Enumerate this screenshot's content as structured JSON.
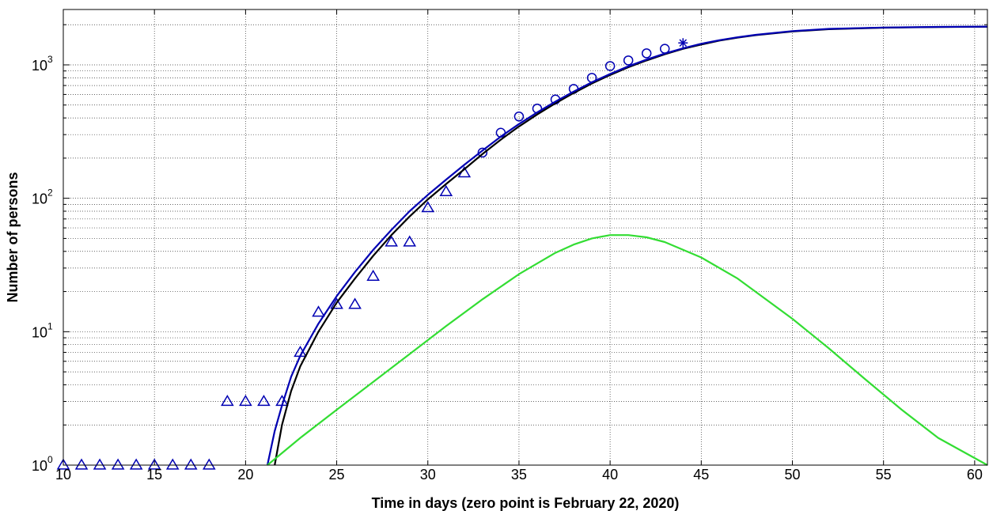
{
  "chart_data": {
    "type": "line",
    "title": "",
    "xlabel": "Time in days (zero point is February 22, 2020)",
    "ylabel": "Number of persons",
    "xlim": [
      10,
      60.7
    ],
    "ylim": [
      1,
      2600
    ],
    "yscale": "log",
    "grid": true,
    "x_ticks": [
      10,
      15,
      20,
      25,
      30,
      35,
      40,
      45,
      50,
      55,
      60
    ],
    "y_ticks": [
      {
        "value": 1,
        "base": "10",
        "exp": "0"
      },
      {
        "value": 10,
        "base": "10",
        "exp": "1"
      },
      {
        "value": 100,
        "base": "10",
        "exp": "2"
      },
      {
        "value": 1000,
        "base": "10",
        "exp": "3"
      }
    ],
    "series": [
      {
        "style": "triangle-markers",
        "color": "#0000b3",
        "x": [
          10,
          11,
          12,
          13,
          14,
          15,
          16,
          17,
          18,
          19,
          20,
          21,
          22,
          23,
          24,
          25,
          26,
          27,
          28,
          29,
          30,
          31,
          32
        ],
        "y": [
          1,
          1,
          1,
          1,
          1,
          1,
          1,
          1,
          1,
          3,
          3,
          3,
          3,
          7,
          14,
          16,
          16,
          26,
          47,
          47,
          85,
          112,
          155
        ]
      },
      {
        "style": "circle-markers",
        "color": "#0000b3",
        "x": [
          33,
          34,
          35,
          36,
          37,
          38,
          39,
          40,
          41,
          42,
          43
        ],
        "y": [
          220,
          310,
          410,
          470,
          550,
          660,
          800,
          980,
          1080,
          1220,
          1320
        ]
      },
      {
        "style": "star-marker",
        "color": "#0000b3",
        "x": [
          44
        ],
        "y": [
          1460
        ]
      },
      {
        "style": "line",
        "color": "#000000",
        "x": [
          21.6,
          22.0,
          22.5,
          23,
          24,
          25,
          26,
          27,
          28,
          29,
          30,
          31,
          32,
          33,
          34,
          35,
          36,
          37,
          38,
          39,
          40,
          41,
          42,
          43,
          44,
          45,
          46,
          47,
          48,
          50,
          52,
          55,
          58,
          60.7
        ],
        "y": [
          1,
          2,
          3.6,
          5.5,
          10,
          16.5,
          25,
          37,
          53,
          73,
          98,
          128,
          165,
          215,
          275,
          345,
          425,
          515,
          615,
          725,
          840,
          960,
          1080,
          1200,
          1320,
          1420,
          1520,
          1600,
          1670,
          1780,
          1850,
          1900,
          1920,
          1930
        ]
      },
      {
        "style": "line",
        "color": "#0000b3",
        "x": [
          21.2,
          21.6,
          22.0,
          22.5,
          23,
          24,
          25,
          26,
          27,
          28,
          29,
          30,
          31,
          32,
          33,
          34,
          35,
          36,
          37,
          38,
          39,
          40,
          41,
          42,
          43,
          44,
          45,
          46,
          47,
          48,
          50,
          52,
          55,
          58,
          60.7
        ],
        "y": [
          1,
          1.8,
          2.8,
          4.6,
          6.6,
          11.5,
          18.5,
          28,
          41,
          58,
          80,
          106,
          138,
          178,
          228,
          290,
          360,
          440,
          530,
          630,
          740,
          855,
          975,
          1095,
          1215,
          1330,
          1440,
          1530,
          1610,
          1680,
          1790,
          1860,
          1905,
          1925,
          1935
        ]
      },
      {
        "style": "line",
        "color": "#33dd33",
        "x": [
          21.2,
          23,
          25,
          27,
          29,
          31,
          33,
          35,
          37,
          38,
          39,
          40,
          41,
          42,
          43,
          45,
          47,
          50,
          52,
          54,
          56,
          58,
          60.7
        ],
        "y": [
          1,
          1.6,
          2.6,
          4.2,
          6.8,
          11,
          17.5,
          27,
          39,
          45,
          50,
          53,
          53,
          51,
          47,
          36,
          25,
          12.5,
          7.5,
          4.4,
          2.6,
          1.6,
          1
        ]
      }
    ]
  }
}
